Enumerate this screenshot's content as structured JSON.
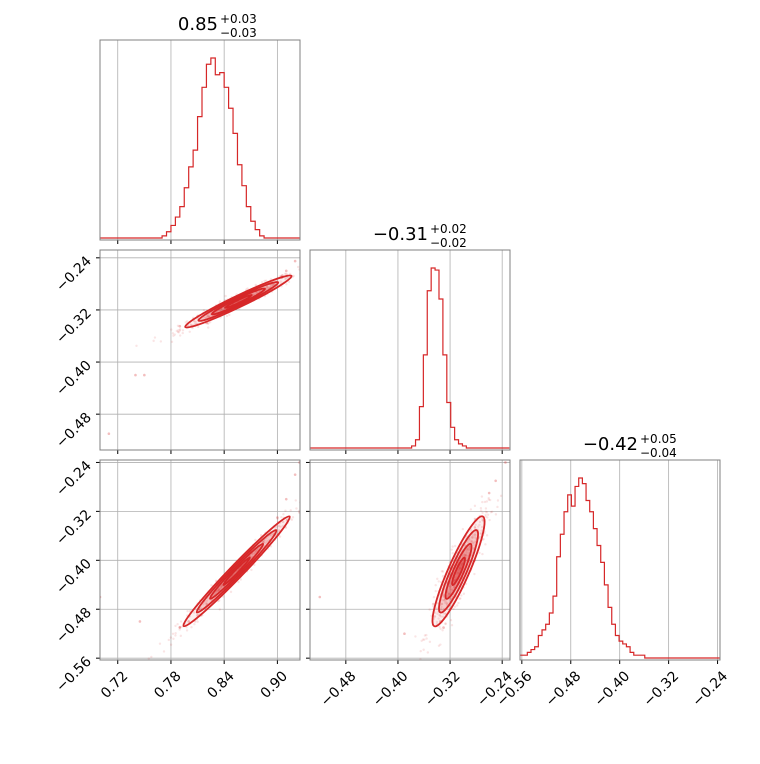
{
  "chart_data": {
    "type": "corner",
    "color": "#d62728",
    "titles": [
      {
        "main": "0.85",
        "sup": "+0.03",
        "sub": "−0.03"
      },
      {
        "main": "−0.31",
        "sup": "+0.02",
        "sub": "−0.02"
      },
      {
        "main": "−0.42",
        "sup": "+0.05",
        "sub": "−0.04"
      }
    ],
    "params": [
      {
        "range": [
          0.7,
          0.9255
        ],
        "ticks": [
          0.72,
          0.78,
          0.84,
          0.9
        ],
        "tick_labels": [
          "0.72",
          "0.78",
          "0.84",
          "0.90"
        ]
      },
      {
        "range": [
          -0.535,
          -0.228
        ],
        "ticks": [
          -0.48,
          -0.4,
          -0.32,
          -0.24
        ],
        "tick_labels": [
          "−0.48",
          "−0.40",
          "−0.32",
          "−0.24"
        ]
      },
      {
        "range": [
          -0.563,
          -0.236
        ],
        "ticks": [
          -0.56,
          -0.48,
          -0.4,
          -0.32,
          -0.24
        ],
        "tick_labels": [
          "−0.56",
          "−0.48",
          "−0.40",
          "−0.32",
          "−0.24"
        ]
      }
    ],
    "histograms": [
      {
        "param": 0,
        "bin_edges_start": 0.7,
        "bin_width": 0.005,
        "counts": [
          0,
          0,
          0,
          0,
          0,
          0,
          0,
          0,
          0,
          0,
          0,
          0,
          0,
          0,
          1,
          3,
          6,
          10,
          15,
          24,
          34,
          42,
          58,
          72,
          83,
          86,
          78,
          79,
          72,
          62,
          50,
          35,
          25,
          15,
          8,
          4,
          1,
          0,
          0,
          0,
          0,
          0,
          0,
          0,
          0,
          0
        ]
      },
      {
        "param": 1,
        "bin_edges_start": -0.535,
        "bin_width": 0.006,
        "counts": [
          0,
          0,
          0,
          0,
          0,
          0,
          0,
          0,
          0,
          0,
          0,
          0,
          0,
          0,
          0,
          0,
          0,
          0,
          0,
          0,
          0,
          0,
          0,
          0,
          0,
          0,
          1,
          4,
          20,
          45,
          76,
          87,
          86,
          72,
          45,
          22,
          10,
          4,
          2,
          1,
          0,
          0,
          0,
          0,
          0,
          0,
          0,
          0,
          0,
          0,
          0
        ]
      },
      {
        "param": 2,
        "bin_edges_start": -0.563,
        "bin_width": 0.006,
        "counts": [
          1,
          1,
          2,
          3,
          4,
          8,
          10,
          12,
          16,
          22,
          36,
          44,
          52,
          58,
          54,
          61,
          64,
          62,
          56,
          52,
          46,
          40,
          34,
          26,
          18,
          12,
          8,
          6,
          5,
          4,
          2,
          1,
          1,
          1,
          0,
          0,
          0,
          0,
          0,
          0,
          0,
          0,
          0,
          0,
          0,
          0,
          0,
          0,
          0,
          0,
          0,
          0,
          0,
          0,
          0
        ]
      }
    ],
    "scatter_panels": [
      {
        "x_param": 0,
        "y_param": 1,
        "center": [
          0.856,
          -0.307
        ],
        "spread": [
          0.03,
          0.02
        ],
        "corr": 0.97,
        "tail_points": [
          [
            0.82,
            -0.34
          ],
          [
            0.81,
            -0.33
          ],
          [
            0.79,
            -0.345
          ],
          [
            0.75,
            -0.42
          ],
          [
            0.74,
            -0.42
          ],
          [
            0.71,
            -0.51
          ],
          [
            0.91,
            -0.26
          ],
          [
            0.92,
            -0.245
          ],
          [
            0.905,
            -0.27
          ],
          [
            0.87,
            -0.29
          ]
        ],
        "contour_levels_sigma": [
          0.5,
          1.0,
          1.5,
          2.0
        ]
      },
      {
        "x_param": 0,
        "y_param": 2,
        "center": [
          0.854,
          -0.418
        ],
        "spread": [
          0.03,
          0.045
        ],
        "corr": 0.985,
        "tail_points": [
          [
            0.81,
            -0.49
          ],
          [
            0.8,
            -0.5
          ],
          [
            0.79,
            -0.51
          ],
          [
            0.7,
            -0.46
          ],
          [
            0.745,
            -0.5
          ],
          [
            0.91,
            -0.3
          ],
          [
            0.92,
            -0.26
          ],
          [
            0.925,
            -0.24
          ],
          [
            0.9,
            -0.33
          ]
        ],
        "contour_levels_sigma": [
          0.5,
          1.0,
          1.5,
          2.0
        ]
      },
      {
        "x_param": 1,
        "y_param": 2,
        "center": [
          -0.307,
          -0.418
        ],
        "spread": [
          0.02,
          0.045
        ],
        "corr": 0.9,
        "tail_points": [
          [
            -0.33,
            -0.51
          ],
          [
            -0.335,
            -0.5
          ],
          [
            -0.52,
            -0.46
          ],
          [
            -0.39,
            -0.52
          ],
          [
            -0.25,
            -0.27
          ],
          [
            -0.235,
            -0.24
          ],
          [
            -0.26,
            -0.29
          ],
          [
            -0.32,
            -0.48
          ]
        ],
        "contour_levels_sigma": [
          0.5,
          1.0,
          1.5,
          2.0
        ]
      }
    ]
  }
}
